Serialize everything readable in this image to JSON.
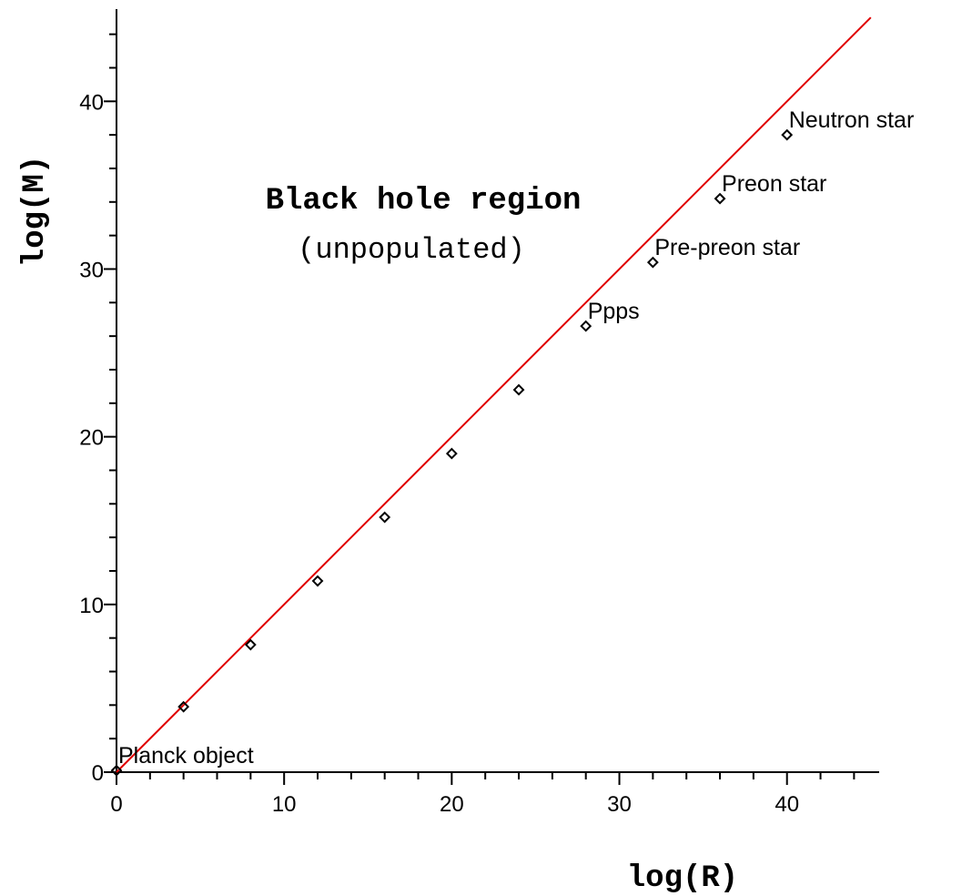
{
  "chart_data": {
    "type": "scatter",
    "xlabel": "log(R)",
    "ylabel": "log(M)",
    "xlim": [
      0,
      45.5
    ],
    "ylim": [
      0,
      45.5
    ],
    "x_ticks": [
      0,
      10,
      20,
      30,
      40
    ],
    "y_ticks": [
      0,
      10,
      20,
      30,
      40
    ],
    "grid": false,
    "annotations": [
      "Black hole region",
      "(unpopulated)"
    ],
    "series": [
      {
        "color": "#000000",
        "marker": "diamond",
        "points": [
          {
            "x": 0,
            "y": 0.1,
            "label": "Planck object"
          },
          {
            "x": 4,
            "y": 3.9,
            "label": ""
          },
          {
            "x": 8,
            "y": 7.6,
            "label": ""
          },
          {
            "x": 12,
            "y": 11.4,
            "label": ""
          },
          {
            "x": 16,
            "y": 15.2,
            "label": ""
          },
          {
            "x": 20,
            "y": 19.0,
            "label": ""
          },
          {
            "x": 24,
            "y": 22.8,
            "label": ""
          },
          {
            "x": 28,
            "y": 26.6,
            "label": "Ppps"
          },
          {
            "x": 32,
            "y": 30.4,
            "label": "Pre-preon star"
          },
          {
            "x": 36,
            "y": 34.2,
            "label": "Preon star"
          },
          {
            "x": 40,
            "y": 38.0,
            "label": "Neutron star"
          }
        ]
      },
      {
        "color": "#e00000",
        "style": "line",
        "x": [
          0,
          45
        ],
        "y": [
          0,
          45
        ]
      }
    ]
  }
}
